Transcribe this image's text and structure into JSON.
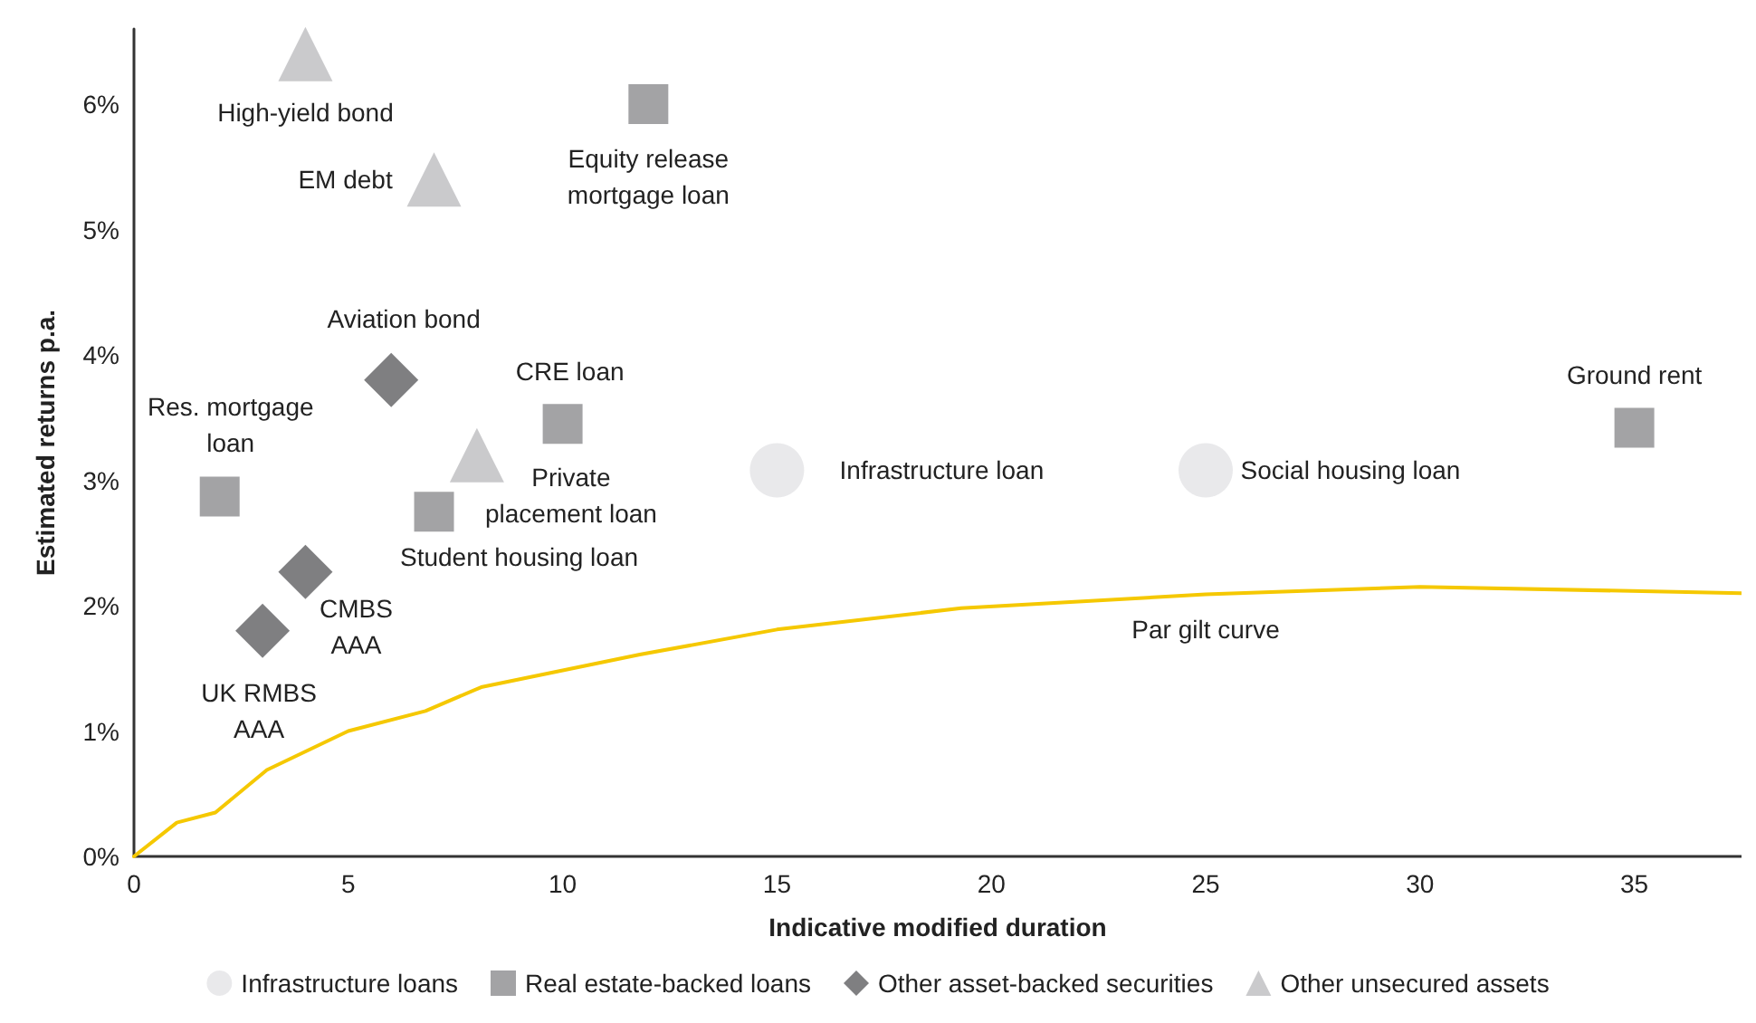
{
  "chart_data": {
    "type": "scatter",
    "xlabel": "Indicative modified duration",
    "ylabel": "Estimated returns p.a.",
    "xlim": [
      0,
      37.5
    ],
    "xticks": [
      0,
      5,
      10,
      15,
      20,
      25,
      30,
      35
    ],
    "ylim": [
      0,
      6.6
    ],
    "yticks": [
      {
        "value": 0,
        "label": "0%"
      },
      {
        "value": 1,
        "label": "1%"
      },
      {
        "value": 2,
        "label": "2%"
      },
      {
        "value": 3,
        "label": "3%"
      },
      {
        "value": 4,
        "label": "4%"
      },
      {
        "value": 5,
        "label": "5%"
      },
      {
        "value": 6,
        "label": "6%"
      }
    ],
    "grid": false,
    "legend": "bottom",
    "series": [
      {
        "name": "Infrastructure loans",
        "color": "#e3e4e6",
        "marker": "circle",
        "x": [
          15,
          25
        ],
        "values": [
          3.08,
          3.08
        ]
      },
      {
        "name": "Real estate-backed loans",
        "color": "#8c8c8f",
        "marker": "square",
        "x": [
          12,
          10,
          2,
          7,
          35
        ],
        "values": [
          6.0,
          3.45,
          2.87,
          2.75,
          3.42
        ]
      },
      {
        "name": "Other asset-backed securities",
        "color": "#5f5f62",
        "marker": "diamond",
        "x": [
          6,
          4,
          3
        ],
        "values": [
          3.8,
          2.27,
          1.8
        ]
      },
      {
        "name": "Other unsecured assets",
        "color": "#bdbdbf",
        "marker": "triangle",
        "x": [
          4,
          7,
          8
        ],
        "values": [
          6.4,
          5.4,
          3.2
        ]
      },
      {
        "type": "line",
        "color": "#f5c800",
        "marker": "none",
        "x": [
          0,
          1,
          1.9,
          3.1,
          5,
          6.8,
          8.1,
          11.8,
          15,
          19.3,
          25,
          30,
          37.5
        ],
        "values": [
          0,
          0.27,
          0.35,
          0.69,
          1.0,
          1.16,
          1.35,
          1.61,
          1.81,
          1.98,
          2.09,
          2.15,
          2.1
        ]
      }
    ],
    "annotations": [
      {
        "text": "High-yield bond",
        "x": 4,
        "y": 6.4
      },
      {
        "text": "EM debt",
        "x": 7,
        "y": 5.4
      },
      {
        "text": "Equity release\nmortgage loan",
        "x": 12,
        "y": 6.0
      },
      {
        "text": "Aviation bond",
        "x": 6,
        "y": 3.8
      },
      {
        "text": "CRE loan",
        "x": 10,
        "y": 3.45
      },
      {
        "text": "Res. mortgage\nloan",
        "x": 2,
        "y": 2.87
      },
      {
        "text": "Private\nplacement loan",
        "x": 8,
        "y": 3.2
      },
      {
        "text": "Student housing loan",
        "x": 7,
        "y": 2.75
      },
      {
        "text": "CMBS\nAAA",
        "x": 4,
        "y": 2.27
      },
      {
        "text": "UK RMBS\nAAA",
        "x": 3,
        "y": 1.8
      },
      {
        "text": "Infrastructure loan",
        "x": 15,
        "y": 3.08
      },
      {
        "text": "Social housing loan",
        "x": 25,
        "y": 3.08
      },
      {
        "text": "Ground rent",
        "x": 35,
        "y": 3.42
      },
      {
        "text": "Par gilt curve",
        "x": 25,
        "y": 2.09
      }
    ]
  }
}
